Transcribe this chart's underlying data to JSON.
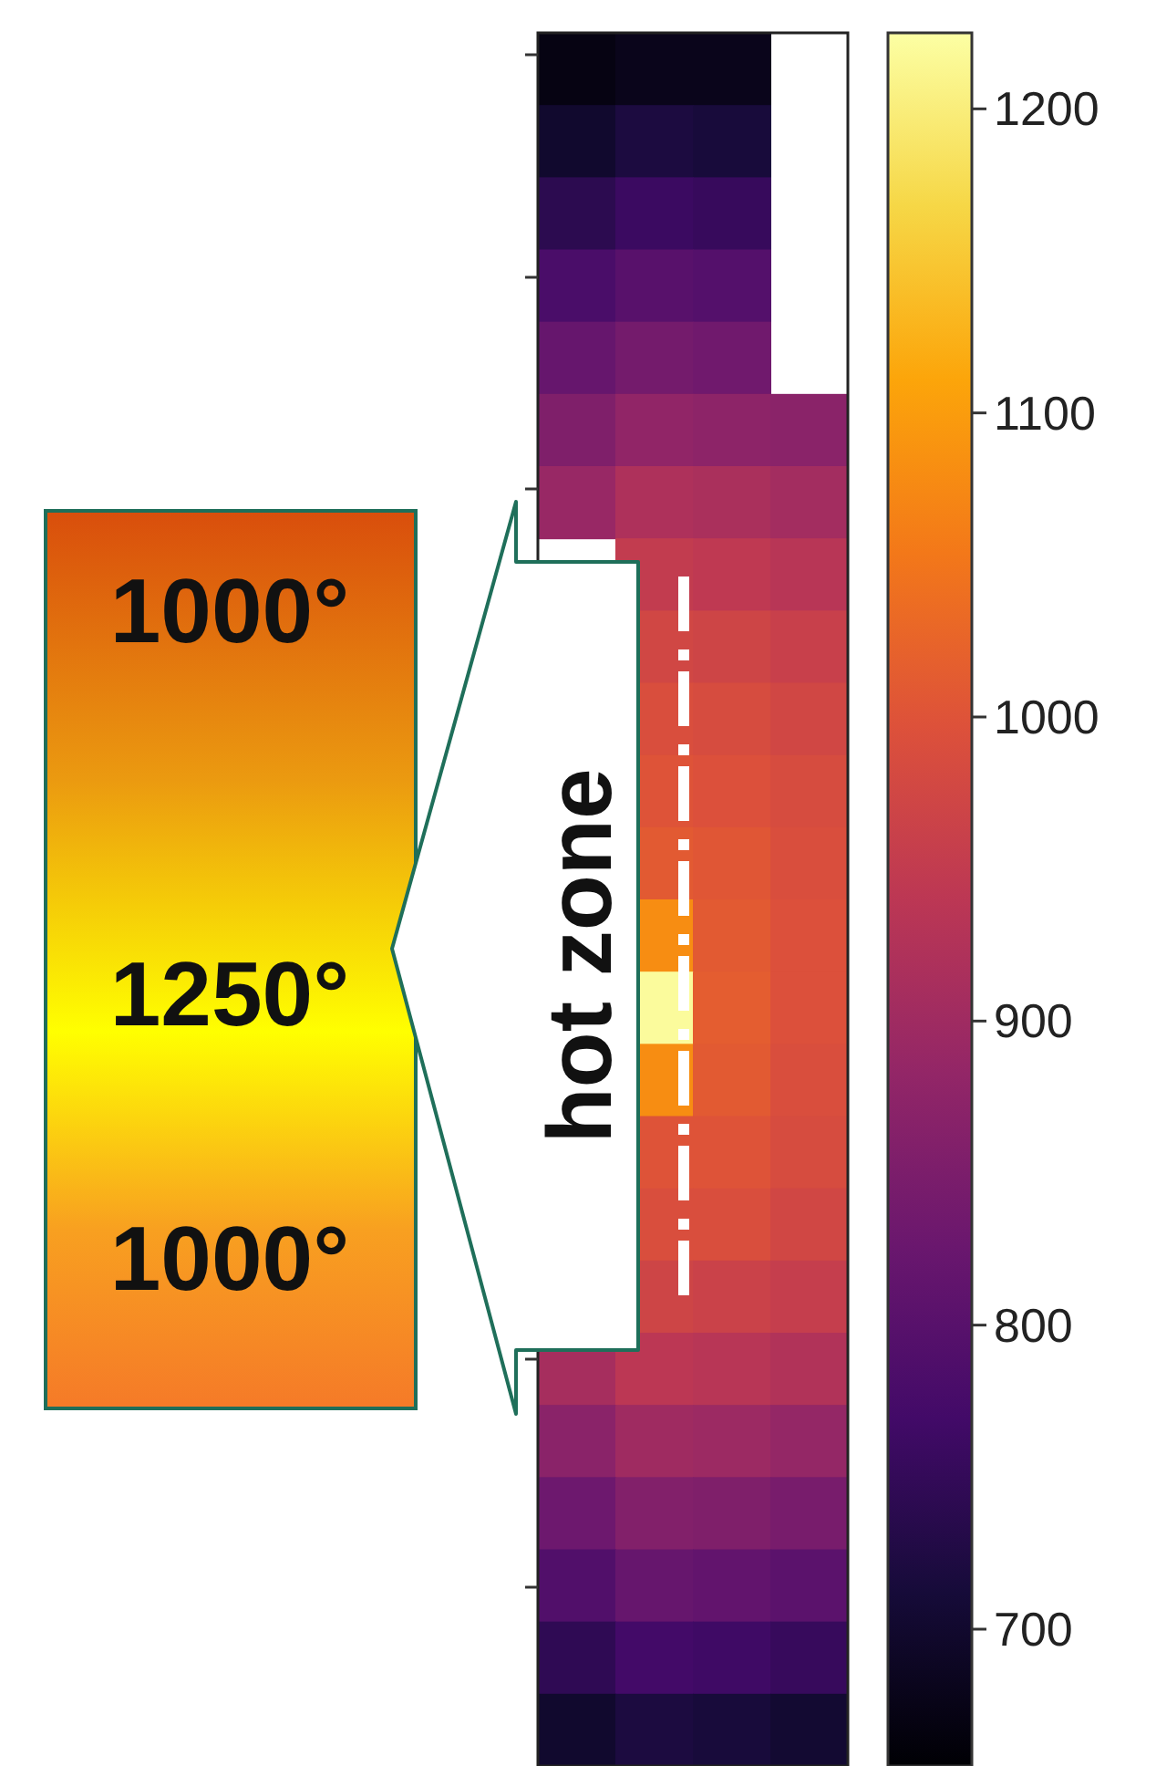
{
  "chart_data": {
    "type": "heatmap",
    "categories": [
      null,
      null,
      null,
      null
    ],
    "y_categories": [
      null,
      null,
      null,
      null,
      null,
      null,
      null,
      null,
      null,
      null,
      null,
      null,
      null,
      null,
      null,
      null,
      null,
      null,
      null,
      null,
      null,
      null,
      null,
      null
    ],
    "cells": [
      [
        670,
        680,
        680,
        null
      ],
      [
        700,
        720,
        715,
        null
      ],
      [
        740,
        760,
        755,
        null
      ],
      [
        780,
        800,
        795,
        null
      ],
      [
        820,
        840,
        835,
        null
      ],
      [
        855,
        880,
        875,
        870
      ],
      [
        890,
        920,
        915,
        905
      ],
      [
        null,
        950,
        945,
        935
      ],
      [
        null,
        975,
        970,
        960
      ],
      [
        null,
        990,
        985,
        975
      ],
      [
        null,
        1000,
        995,
        985
      ],
      [
        null,
        1010,
        1005,
        990
      ],
      [
        null,
        1080,
        1010,
        995
      ],
      [
        null,
        1220,
        1015,
        995
      ],
      [
        null,
        1080,
        1010,
        990
      ],
      [
        null,
        1000,
        1000,
        985
      ],
      [
        null,
        990,
        990,
        975
      ],
      [
        null,
        970,
        965,
        955
      ],
      [
        910,
        940,
        935,
        925
      ],
      [
        870,
        900,
        895,
        885
      ],
      [
        830,
        860,
        855,
        845
      ],
      [
        790,
        820,
        815,
        805
      ],
      [
        745,
        770,
        765,
        755
      ],
      [
        700,
        720,
        715,
        705
      ]
    ],
    "clim": [
      655,
      1225
    ],
    "cticks": [
      700,
      800,
      900,
      1000,
      1100,
      1200
    ],
    "tick_labels": false,
    "annotations": [
      "hot zone",
      "1000°",
      "1250°",
      "1000°"
    ]
  }
}
